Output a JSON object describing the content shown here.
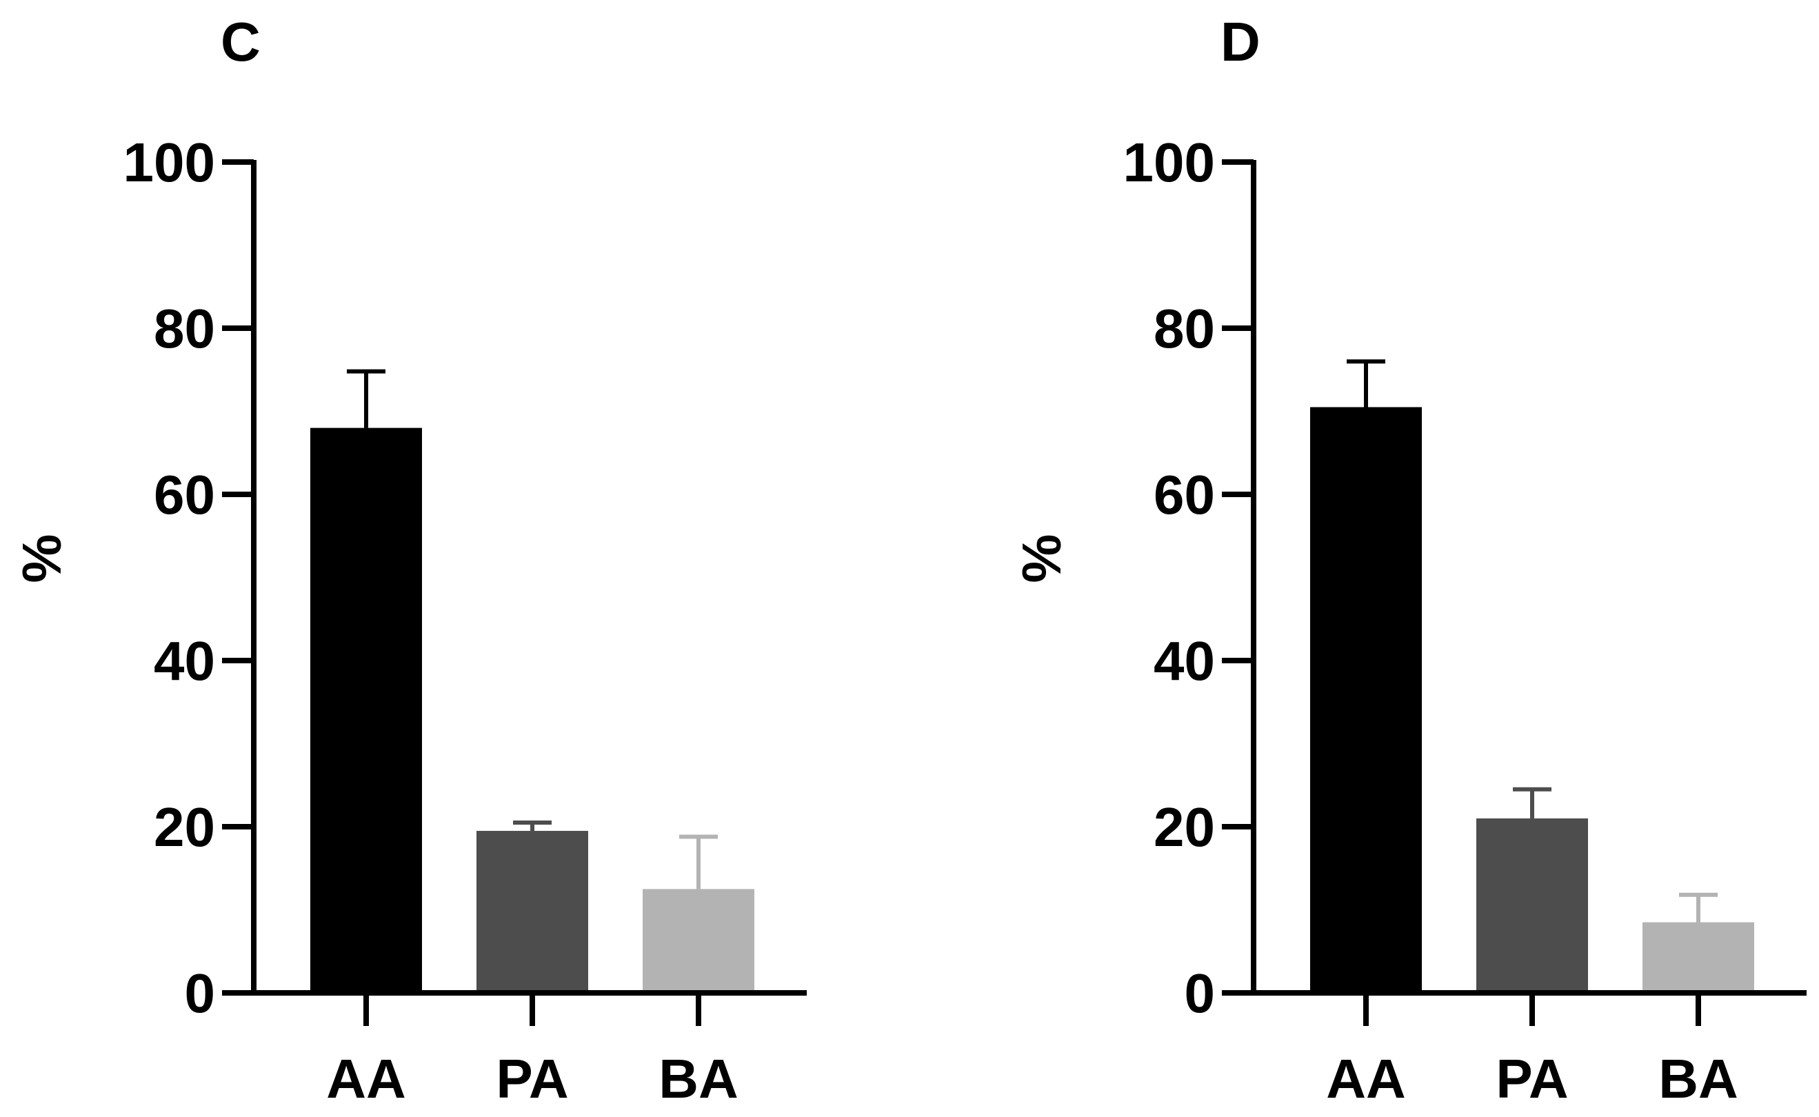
{
  "chart_data": [
    {
      "type": "bar",
      "title": "C",
      "ylabel": "%",
      "xlabel": "",
      "ylim": [
        0,
        100
      ],
      "yticks": [
        "0",
        "20",
        "40",
        "60",
        "80",
        "100"
      ],
      "categories": [
        "AA",
        "PA",
        "BA"
      ],
      "values": [
        68,
        19.5,
        12.5
      ],
      "errors": [
        6.8,
        1.0,
        6.3
      ],
      "colors": [
        "#000000",
        "#4d4d4d",
        "#b3b3b3"
      ],
      "grid": false
    },
    {
      "type": "bar",
      "title": "D",
      "ylabel": "%",
      "xlabel": "",
      "ylim": [
        0,
        100
      ],
      "yticks": [
        "0",
        "20",
        "40",
        "60",
        "80",
        "100"
      ],
      "categories": [
        "AA",
        "PA",
        "BA"
      ],
      "values": [
        70.5,
        21,
        8.5
      ],
      "errors": [
        5.5,
        3.5,
        3.3
      ],
      "colors": [
        "#000000",
        "#4d4d4d",
        "#b3b3b3"
      ],
      "grid": false
    }
  ]
}
